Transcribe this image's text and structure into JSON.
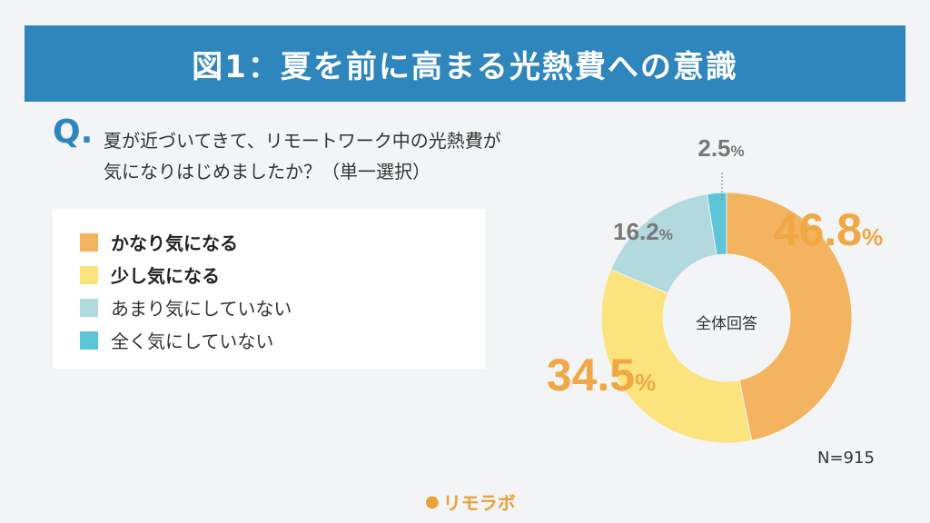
{
  "header": {
    "title": "図1：夏を前に高まる光熱費への意識"
  },
  "question": {
    "mark": "Q.",
    "line1": "夏が近づいてきて、リモートワーク中の光熱費が",
    "line2": "気になりはじめましたか？（単一選択）"
  },
  "chart_data": {
    "type": "pie",
    "center_label": "全体回答",
    "n_label": "N=915",
    "categories": [
      "かなり気になる",
      "少し気になる",
      "あまり気にしていない",
      "全く気にしていない"
    ],
    "values": [
      46.8,
      34.5,
      16.2,
      2.5
    ],
    "value_labels": [
      "46.8",
      "34.5",
      "16.2",
      "2.5"
    ],
    "unit": "%",
    "colors": [
      "#f3b35f",
      "#fbe47d",
      "#b2d9de",
      "#5cc6d8"
    ],
    "label_colors": [
      "#f0a845",
      "#f0a845",
      "#777777",
      "#777777"
    ]
  },
  "brand": {
    "name": "リモラボ"
  }
}
